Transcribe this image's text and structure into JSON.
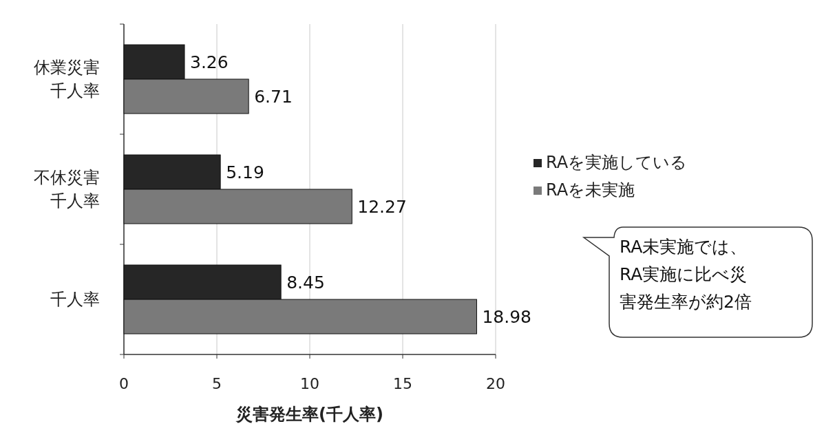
{
  "chart_data": {
    "type": "bar",
    "orientation": "horizontal",
    "categories": [
      "休業災害千人率",
      "不休災害千人率",
      "千人率"
    ],
    "series": [
      {
        "name": "RAを実施している",
        "color": "#262626",
        "values": [
          3.26,
          5.19,
          8.45
        ]
      },
      {
        "name": "RAを未実施",
        "color": "#7a7a7a",
        "values": [
          6.71,
          12.27,
          18.98
        ]
      }
    ],
    "xlabel": "災害発生率(千人率)",
    "xlim": [
      0,
      20
    ],
    "xticks": [
      0,
      5,
      10,
      15,
      20
    ],
    "grid": "x",
    "legend": "right",
    "data_labels": true,
    "annotations": [
      "RA未実施では、RA実施に比べ災害発生率が約2倍"
    ]
  }
}
